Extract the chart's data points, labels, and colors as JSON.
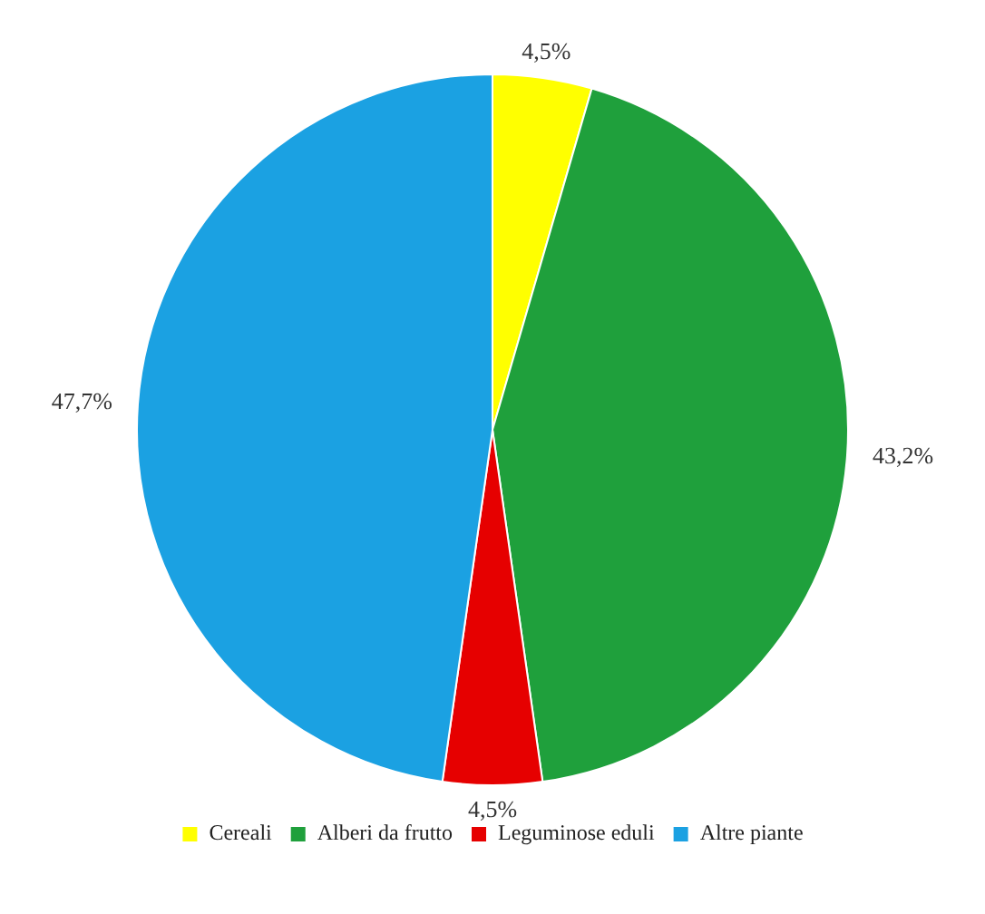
{
  "chart_data": {
    "type": "pie",
    "categories": [
      "Cereali",
      "Alberi da frutto",
      "Leguminose eduli",
      "Altre piante"
    ],
    "values": [
      4.5,
      43.2,
      4.5,
      47.7
    ],
    "colors": [
      "#ffff00",
      "#1fa03c",
      "#e60000",
      "#1ba1e2"
    ],
    "value_labels": [
      "4,5%",
      "43,2%",
      "4,5%",
      "47,7%"
    ],
    "legend": "bottom"
  }
}
